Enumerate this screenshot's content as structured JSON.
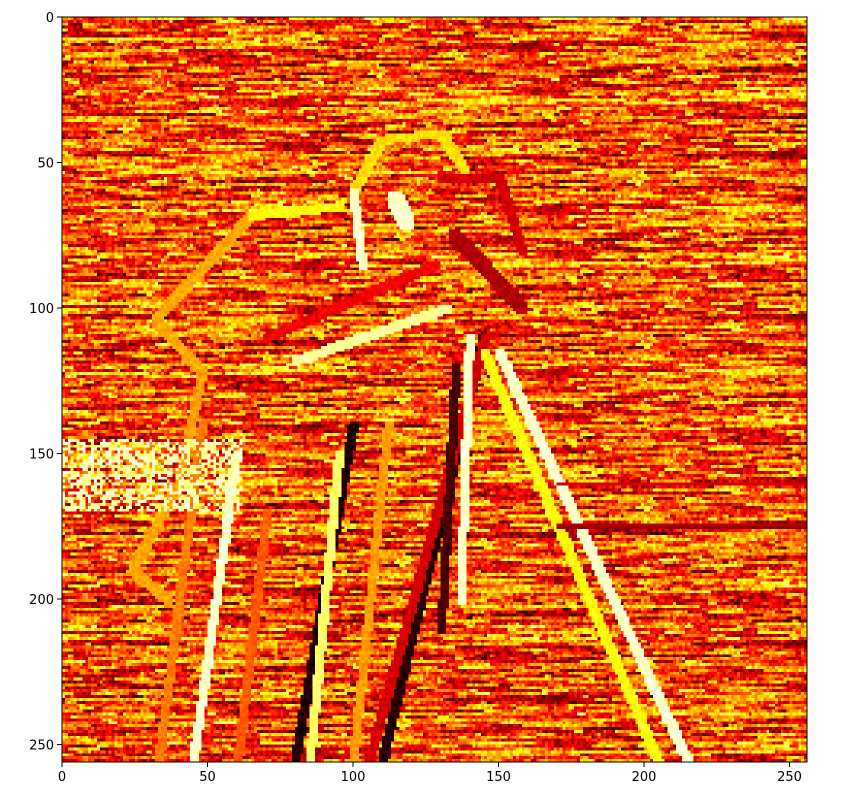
{
  "chart_data": {
    "type": "heatmap",
    "title": "",
    "xlabel": "",
    "ylabel": "",
    "image_size": [
      256,
      256
    ],
    "colormap": "hot",
    "subject": "photographer with camera on tripod (edge-filtered cameraman image)",
    "xlim": [
      0,
      256
    ],
    "ylim": [
      256,
      0
    ],
    "x_ticks": [
      0,
      50,
      100,
      150,
      200,
      250
    ],
    "y_ticks": [
      0,
      50,
      100,
      150,
      200,
      250
    ],
    "x_tick_labels": [
      "0",
      "50",
      "100",
      "150",
      "200",
      "250"
    ],
    "y_tick_labels": [
      "0",
      "50",
      "100",
      "150",
      "200",
      "250"
    ],
    "colors": {
      "black": "#000000",
      "dark_red": "#8b0000",
      "red": "#cc1a00",
      "orange_red": "#e84a00",
      "orange": "#ff8c00",
      "gold": "#ffc400",
      "yellow": "#ffff30",
      "pale_yellow": "#ffffd0"
    },
    "grid": false
  }
}
